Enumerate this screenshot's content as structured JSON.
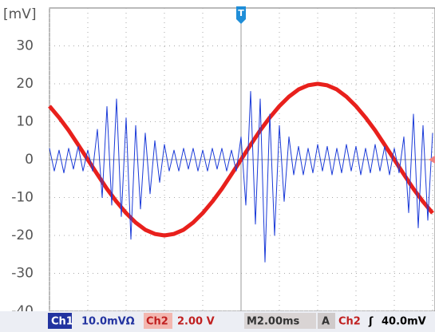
{
  "chart_data": {
    "type": "line",
    "y_label": "[mV]",
    "trigger_marker": "T",
    "xlim": [
      -10,
      10
    ],
    "xticks": [
      -10,
      -8,
      -6,
      -4,
      -2,
      0,
      2,
      4,
      6,
      8,
      10
    ],
    "ylim": [
      -40,
      40
    ],
    "yticks": [
      -40,
      -30,
      -20,
      -10,
      0,
      10,
      20,
      30
    ],
    "grid": true,
    "series": [
      {
        "name": "Ch2",
        "color": "#e8201c",
        "x": [
          -10,
          -9.5,
          -9,
          -8.5,
          -8,
          -7.5,
          -7,
          -6.5,
          -6,
          -5.5,
          -5,
          -4.5,
          -4,
          -3.5,
          -3,
          -2.5,
          -2,
          -1.5,
          -1,
          -0.5,
          0,
          0.5,
          1,
          1.5,
          2,
          2.5,
          3,
          3.5,
          4,
          4.5,
          5,
          5.5,
          6,
          6.5,
          7,
          7.5,
          8,
          8.5,
          9,
          9.5,
          10
        ],
        "values": [
          14.1,
          11.1,
          7.7,
          3.9,
          0,
          -3.9,
          -7.7,
          -11.1,
          -14.1,
          -16.6,
          -18.5,
          -19.6,
          -20,
          -19.6,
          -18.5,
          -16.6,
          -14.1,
          -11.1,
          -7.7,
          -3.9,
          0,
          3.9,
          7.7,
          11.1,
          14.1,
          16.6,
          18.5,
          19.6,
          20,
          19.6,
          18.5,
          16.6,
          14.1,
          11.1,
          7.7,
          3.9,
          0,
          -3.9,
          -7.7,
          -11.1,
          -14.1
        ]
      },
      {
        "name": "Ch1",
        "color": "#1a3ad8",
        "x": [
          -10,
          -9.75,
          -9.5,
          -9.25,
          -9,
          -8.75,
          -8.5,
          -8.25,
          -8,
          -7.75,
          -7.5,
          -7.25,
          -7,
          -6.75,
          -6.5,
          -6.25,
          -6,
          -5.75,
          -5.5,
          -5.25,
          -5,
          -4.75,
          -4.5,
          -4.25,
          -4,
          -3.75,
          -3.5,
          -3.25,
          -3,
          -2.75,
          -2.5,
          -2.25,
          -2,
          -1.75,
          -1.5,
          -1.25,
          -1,
          -0.75,
          -0.5,
          -0.25,
          0,
          0.25,
          0.5,
          0.75,
          1,
          1.25,
          1.5,
          1.75,
          2,
          2.25,
          2.5,
          2.75,
          3,
          3.25,
          3.5,
          3.75,
          4,
          4.25,
          4.5,
          4.75,
          5,
          5.25,
          5.5,
          5.75,
          6,
          6.25,
          6.5,
          6.75,
          7,
          7.25,
          7.5,
          7.75,
          8,
          8.25,
          8.5,
          8.75,
          9,
          9.25,
          9.5,
          9.75,
          10
        ],
        "values": [
          3,
          -3,
          2.5,
          -3.5,
          3,
          -2.5,
          3.5,
          -3,
          2.5,
          -3,
          8,
          -10,
          14,
          -12,
          16,
          -15,
          11,
          -21,
          9,
          -13,
          7,
          -9,
          5,
          -6,
          4,
          -3,
          2.5,
          -3,
          3,
          -2.5,
          3,
          -3,
          2.5,
          -3,
          3,
          -2.5,
          3,
          -3,
          2.5,
          -3,
          6,
          -12,
          18,
          -17,
          16,
          -27,
          12,
          -20,
          9,
          -11,
          6,
          -4,
          3.5,
          -4,
          3,
          -3.5,
          4,
          -3,
          3.5,
          -4,
          3,
          -3.5,
          4,
          -3,
          3.5,
          -4,
          3,
          -3.5,
          4,
          -3,
          3.5,
          -4,
          3,
          -3.5,
          6,
          -14,
          12,
          -18,
          9,
          -16,
          7
        ]
      }
    ],
    "status_bar": [
      "Ch1",
      "10.0mVΩ",
      "Ch2",
      "2.00 V",
      "M2.00ms",
      "A",
      "Ch2",
      "ʃ",
      "40.0mV"
    ]
  }
}
